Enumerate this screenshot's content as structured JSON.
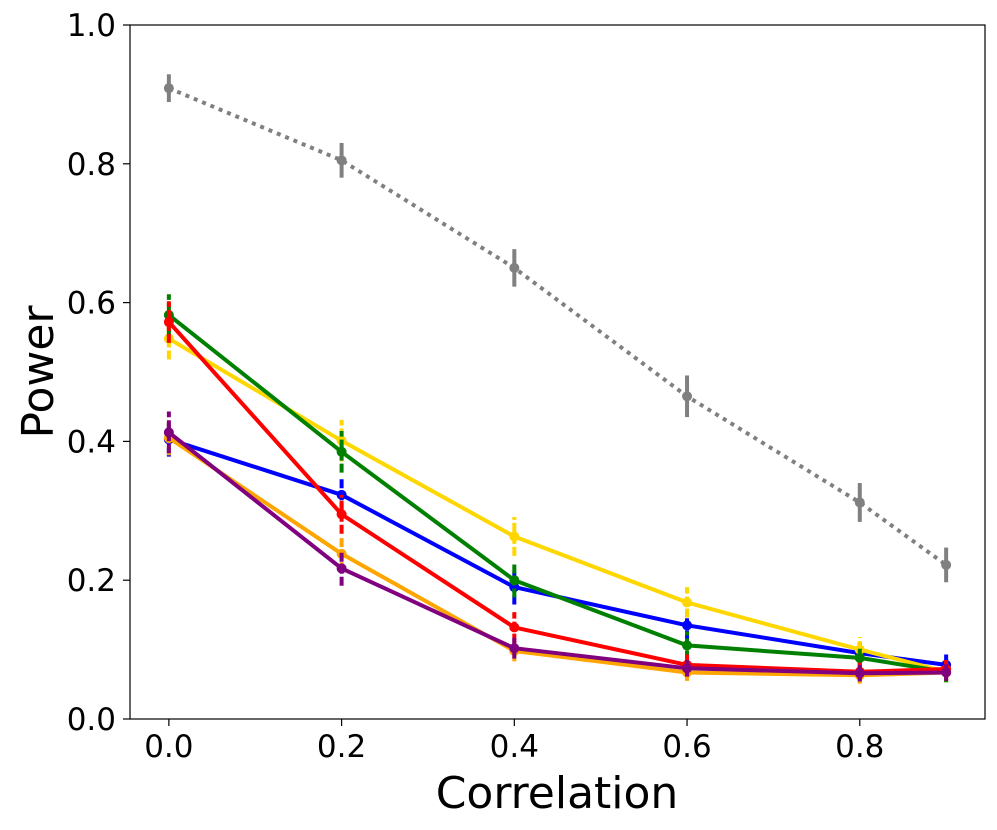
{
  "chart_data": {
    "type": "line",
    "title": "",
    "xlabel": "Correlation",
    "ylabel": "Power",
    "xlim": [
      -0.045,
      0.945
    ],
    "ylim": [
      0.0,
      1.0
    ],
    "x": [
      0.0,
      0.2,
      0.4,
      0.6,
      0.8,
      0.9
    ],
    "x_ticks": [
      "0.0",
      "0.2",
      "0.4",
      "0.6",
      "0.8"
    ],
    "y_ticks": [
      "0.0",
      "0.2",
      "0.4",
      "0.6",
      "0.8",
      "1.0"
    ],
    "grid": false,
    "series": [
      {
        "name": "gray",
        "color": "#808080",
        "style": "dotted",
        "values": [
          0.909,
          0.805,
          0.65,
          0.465,
          0.312,
          0.222
        ],
        "errors": [
          0.02,
          0.025,
          0.027,
          0.03,
          0.028,
          0.025
        ]
      },
      {
        "name": "blue",
        "color": "#0000ff",
        "style": "solid",
        "values": [
          0.403,
          0.323,
          0.19,
          0.135,
          0.095,
          0.078
        ],
        "errors": [
          0.025,
          0.025,
          0.025,
          0.02,
          0.015,
          0.015
        ]
      },
      {
        "name": "orange",
        "color": "#ffa500",
        "style": "solid",
        "values": [
          0.405,
          0.238,
          0.098,
          0.067,
          0.063,
          0.067
        ],
        "errors": [
          0.025,
          0.025,
          0.015,
          0.012,
          0.012,
          0.012
        ]
      },
      {
        "name": "gold",
        "color": "#ffd700",
        "style": "solid",
        "values": [
          0.548,
          0.401,
          0.263,
          0.168,
          0.1,
          0.068
        ],
        "errors": [
          0.03,
          0.03,
          0.028,
          0.022,
          0.018,
          0.015
        ]
      },
      {
        "name": "green",
        "color": "#008000",
        "style": "solid",
        "values": [
          0.582,
          0.385,
          0.2,
          0.106,
          0.088,
          0.068
        ],
        "errors": [
          0.03,
          0.03,
          0.025,
          0.02,
          0.017,
          0.015
        ]
      },
      {
        "name": "red",
        "color": "#ff0000",
        "style": "solid",
        "values": [
          0.572,
          0.295,
          0.132,
          0.078,
          0.068,
          0.072
        ],
        "errors": [
          0.03,
          0.028,
          0.022,
          0.015,
          0.013,
          0.013
        ]
      },
      {
        "name": "purple",
        "color": "#800080",
        "style": "solid",
        "values": [
          0.413,
          0.217,
          0.102,
          0.073,
          0.066,
          0.067
        ],
        "errors": [
          0.03,
          0.025,
          0.015,
          0.012,
          0.012,
          0.012
        ]
      }
    ]
  }
}
